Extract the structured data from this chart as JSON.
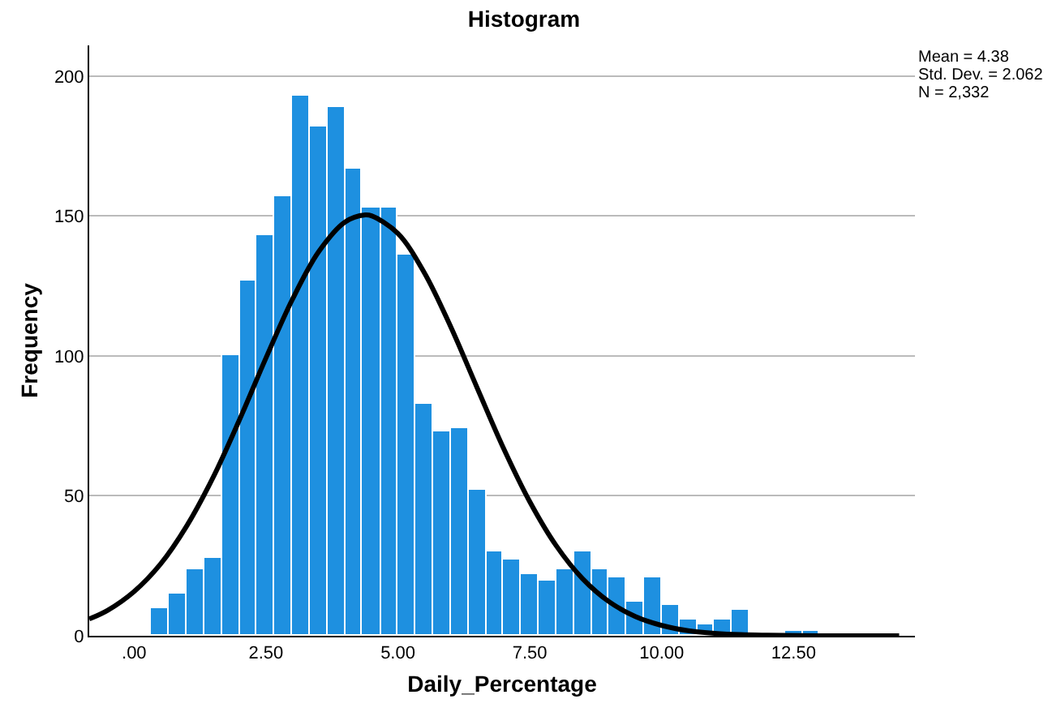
{
  "chart_data": {
    "type": "histogram",
    "title": "Histogram",
    "xlabel": "Daily_Percentage",
    "ylabel": "Frequency",
    "bins": [
      0.33,
      0.67,
      1.0,
      1.33,
      1.67,
      2.0,
      2.33,
      2.67,
      3.0,
      3.33,
      3.67,
      4.0,
      4.33,
      4.67,
      5.0,
      5.33,
      5.67,
      6.0,
      6.33,
      6.67,
      7.0,
      7.33,
      7.67,
      8.0,
      8.33,
      8.67,
      9.0,
      9.33,
      9.67,
      10.0,
      10.33,
      10.67,
      11.0,
      11.33,
      11.67,
      12.33,
      12.67,
      13.0
    ],
    "values": [
      10,
      15,
      24,
      28,
      100,
      127,
      143,
      157,
      193,
      182,
      189,
      167,
      153,
      153,
      136,
      83,
      73,
      74,
      52,
      30,
      27,
      22,
      20,
      24,
      30,
      24,
      21,
      12,
      21,
      11,
      6,
      4,
      6,
      9,
      0,
      2,
      2
    ],
    "color": "#1e90e0",
    "series": [
      {
        "type": "line",
        "color": "#000000",
        "x": [
          -0.85,
          -0.5,
          0,
          0.5,
          1,
          1.5,
          2,
          2.5,
          3,
          3.5,
          4,
          4.38,
          4.5,
          5,
          5.5,
          6,
          6.5,
          7,
          7.5,
          8,
          8.5,
          9,
          9.5,
          10,
          10.5,
          11,
          11.5,
          12,
          13,
          14.5
        ],
        "values": [
          6,
          9.1,
          15.8,
          25.6,
          39.3,
          56.7,
          77.3,
          99.3,
          120.2,
          137.3,
          147.9,
          150.4,
          150.1,
          143.8,
          129.8,
          110.5,
          88.7,
          67.1,
          47.9,
          32.2,
          20.4,
          12.2,
          6.9,
          3.7,
          1.8,
          0.9,
          0.4,
          0.2,
          0,
          0
        ]
      }
    ],
    "xlim": [
      -0.85,
      14.8
    ],
    "xticks": [
      {
        "value": 0,
        "label": ".00"
      },
      {
        "value": 2.5,
        "label": "2.50"
      },
      {
        "value": 5,
        "label": "5.00"
      },
      {
        "value": 7.5,
        "label": "7.50"
      },
      {
        "value": 10,
        "label": "10.00"
      },
      {
        "value": 12.5,
        "label": "12.50"
      }
    ],
    "ylim": [
      0,
      211
    ],
    "yticks": [
      0,
      50,
      100,
      150,
      200
    ],
    "grid": "y",
    "marker": "none",
    "line_style": "solid",
    "annotations": [
      "Mean = 4.38",
      "Std. Dev. = 2.062",
      "N = 2,332"
    ]
  }
}
